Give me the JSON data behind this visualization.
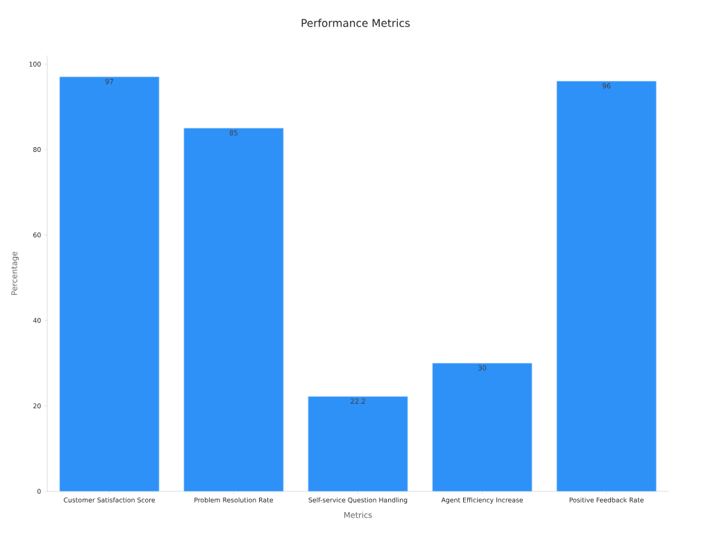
{
  "chart_data": {
    "type": "bar",
    "title": "Performance Metrics",
    "xlabel": "Metrics",
    "ylabel": "Percentage",
    "categories": [
      "Customer Satisfaction Score",
      "Problem Resolution Rate",
      "Self-service Question Handling",
      "Agent Efficiency Increase",
      "Positive Feedback Rate"
    ],
    "values": [
      97,
      85,
      22.2,
      30,
      96
    ],
    "color": "#2e91f7",
    "ylim": [
      0,
      102
    ],
    "yticks": [
      0,
      20,
      40,
      60,
      80,
      100
    ],
    "data_labels": true
  }
}
